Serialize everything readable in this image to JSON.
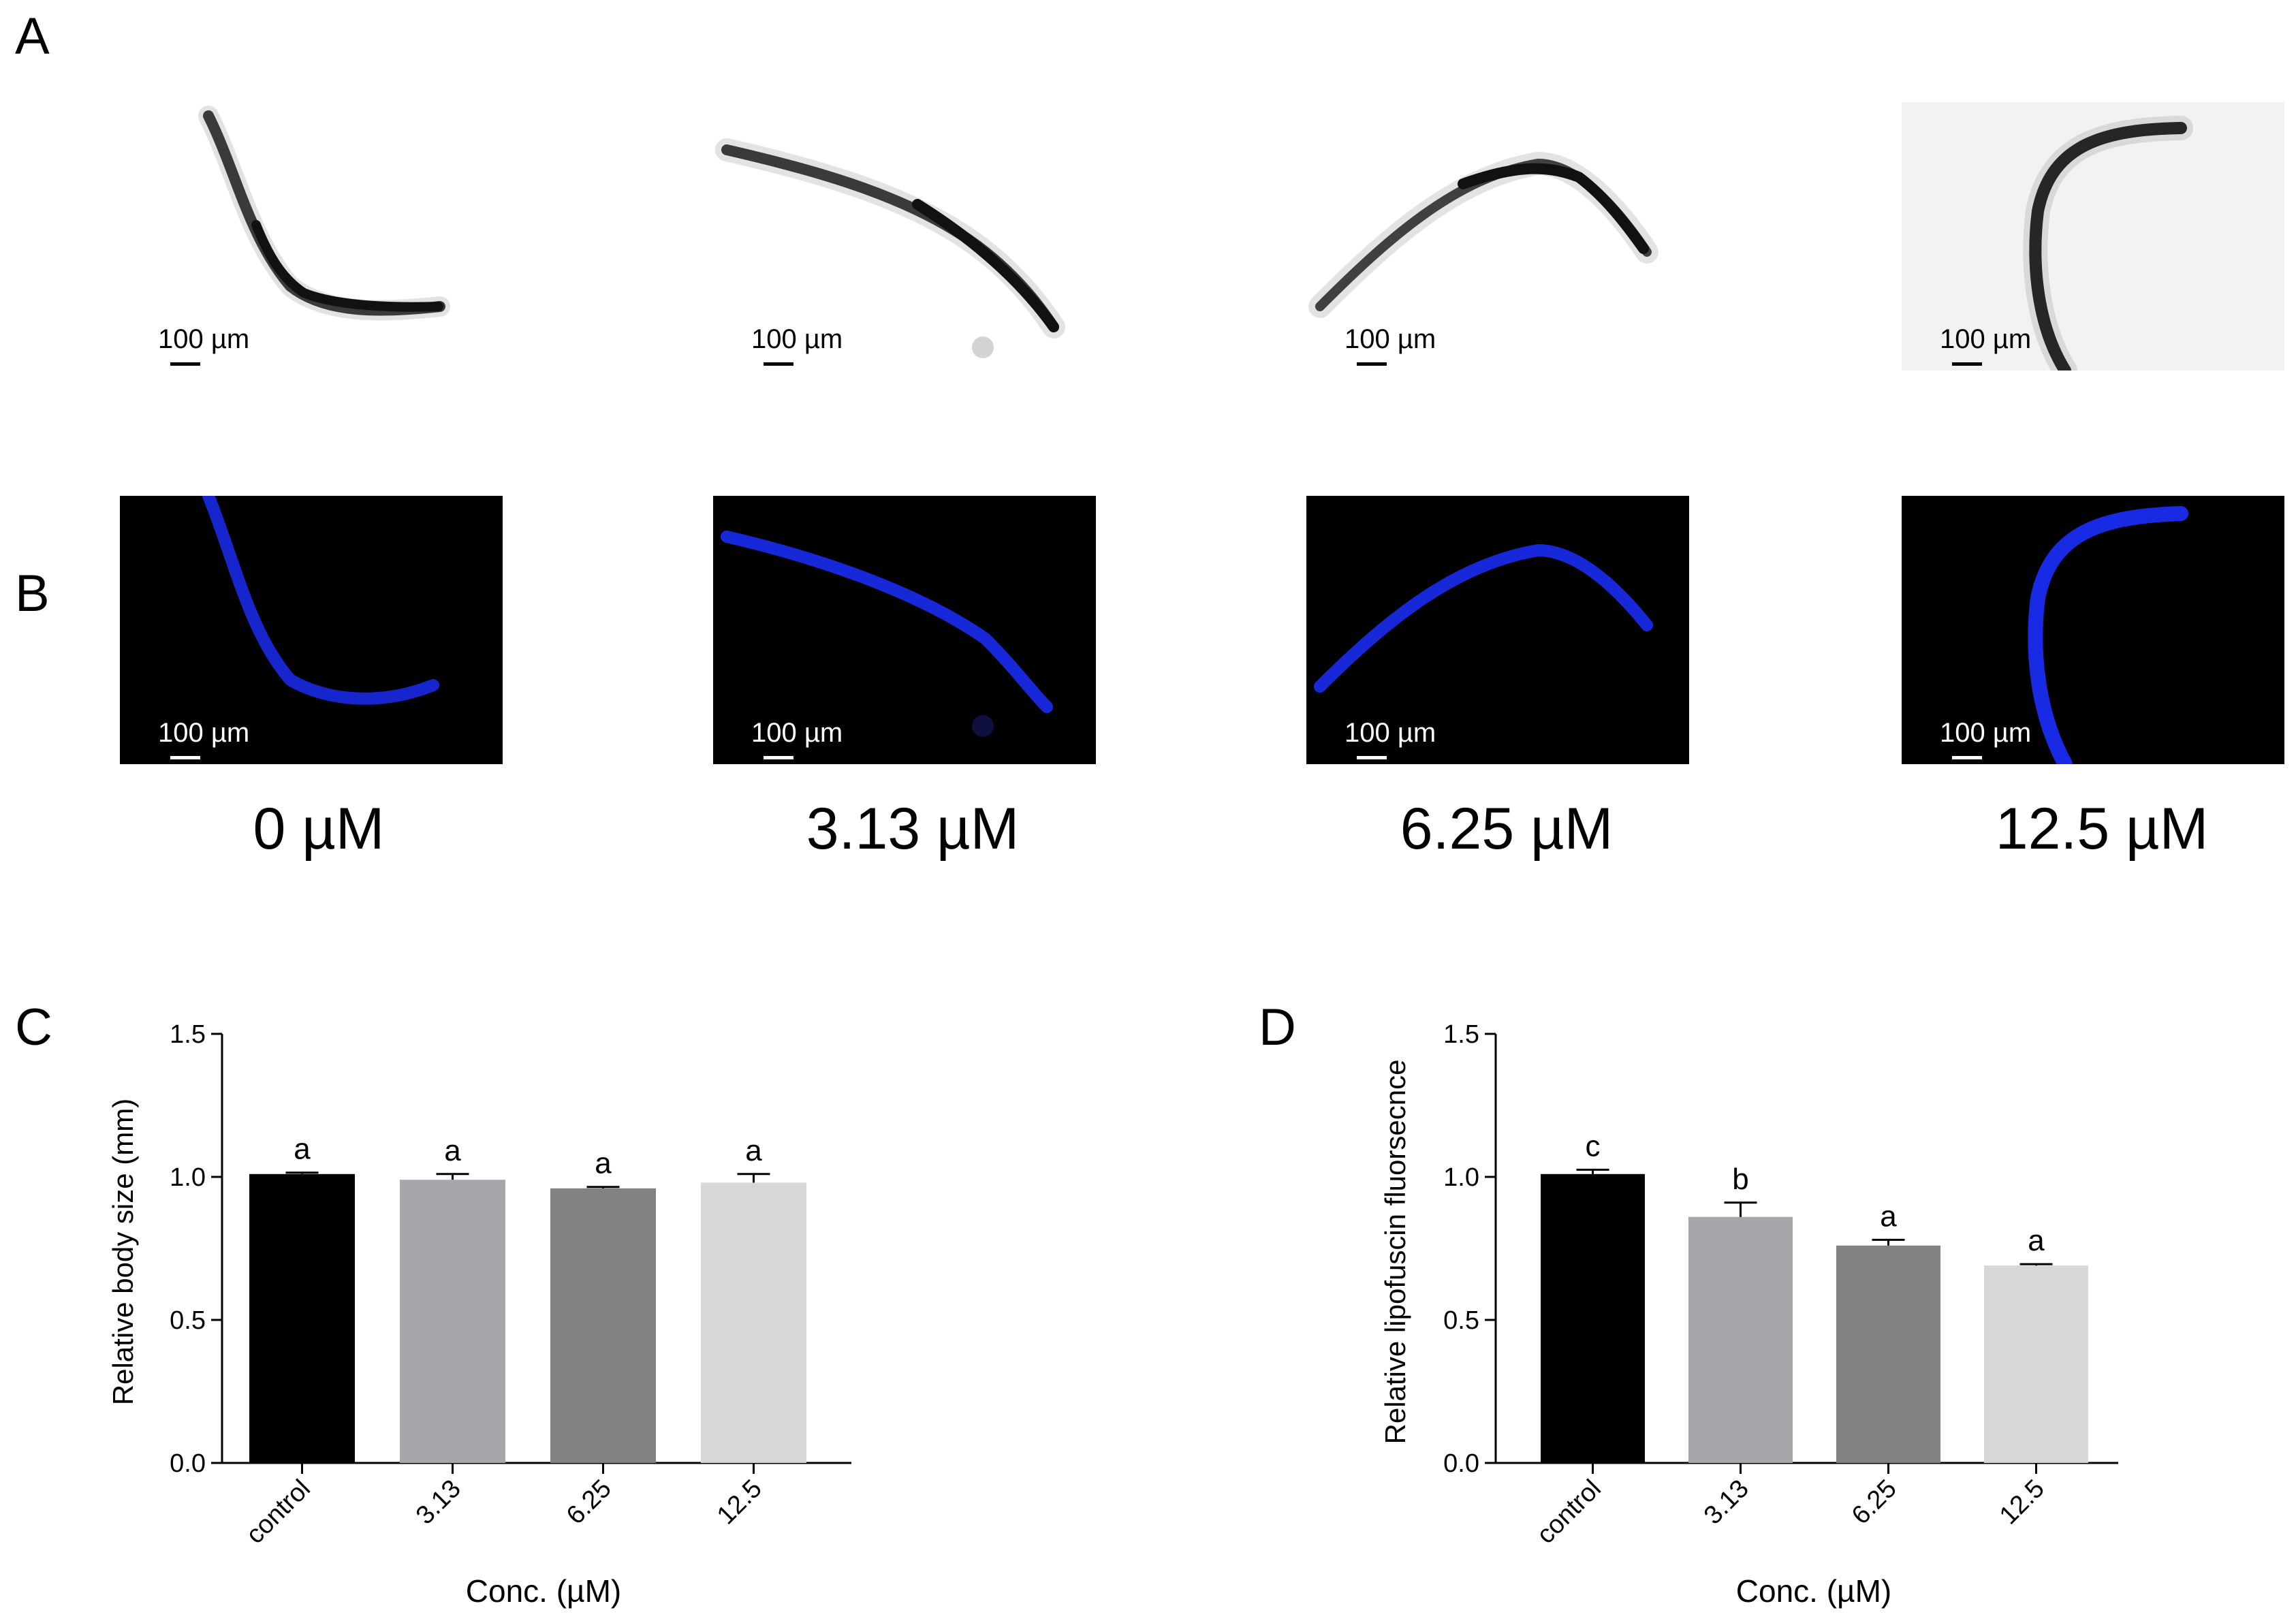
{
  "panels": {
    "a": "A",
    "b": "B",
    "c": "C",
    "d": "D"
  },
  "scale_bar": "100 µm",
  "concentrations": [
    "0 µM",
    "3.13 µM",
    "6.25 µM",
    "12.5 µM"
  ],
  "colors": {
    "fluorescence_bg": "#000000",
    "worm_fluorescence": "#1a2cf0",
    "bar_control": "#000000",
    "bar_3_13": "#a6a7ab",
    "bar_6_25": "#828282",
    "bar_12_5": "#d7d7d7"
  },
  "chart_data": [
    {
      "type": "bar",
      "panel": "C",
      "categories": [
        "control",
        "3.13",
        "6.25",
        "12.5"
      ],
      "values": [
        1.01,
        0.99,
        0.96,
        0.98
      ],
      "errors": [
        0.005,
        0.02,
        0.005,
        0.03
      ],
      "significance": [
        "a",
        "a",
        "a",
        "a"
      ],
      "xlabel": "Conc. (µM)",
      "ylabel": "Relative body size (mm)",
      "ylim": [
        0,
        1.5
      ],
      "yticks": [
        "0.0",
        "0.5",
        "1.0",
        "1.5"
      ],
      "grid": false
    },
    {
      "type": "bar",
      "panel": "D",
      "categories": [
        "control",
        "3.13",
        "6.25",
        "12.5"
      ],
      "values": [
        1.01,
        0.86,
        0.76,
        0.69
      ],
      "errors": [
        0.015,
        0.05,
        0.02,
        0.005
      ],
      "significance": [
        "c",
        "b",
        "a",
        "a"
      ],
      "xlabel": "Conc. (µM)",
      "ylabel": "Relative lipofuscin fluorsecnce",
      "ylim": [
        0,
        1.5
      ],
      "yticks": [
        "0.0",
        "0.5",
        "1.0",
        "1.5"
      ],
      "grid": false
    }
  ]
}
